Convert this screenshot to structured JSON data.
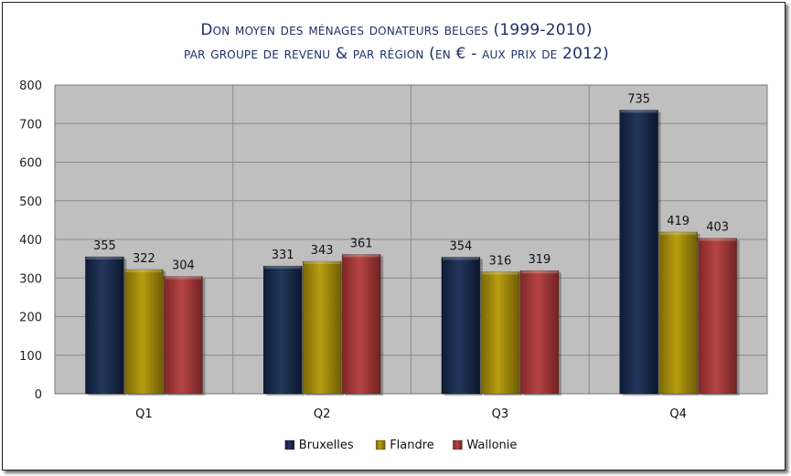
{
  "chart_data": {
    "type": "bar",
    "title": "Don moyen des ménages donateurs belges (1999-2010)",
    "subtitle": "par groupe de revenu & par région (en € - aux prix de 2012)",
    "categories": [
      "Q1",
      "Q2",
      "Q3",
      "Q4"
    ],
    "series": [
      {
        "name": "Bruxelles",
        "values": [
          355,
          331,
          354,
          735
        ],
        "color": "#17294a"
      },
      {
        "name": "Flandre",
        "values": [
          322,
          343,
          316,
          419
        ],
        "color": "#a08a0a"
      },
      {
        "name": "Wallonie",
        "values": [
          304,
          361,
          319,
          403
        ],
        "color": "#a33a3a"
      }
    ],
    "y_ticks": [
      "0",
      "100",
      "200",
      "300",
      "400",
      "500",
      "600",
      "700",
      "800"
    ],
    "ylim": [
      0,
      800
    ],
    "grid": true,
    "legend_position": "bottom-center",
    "plot_background": "#bfbfbf"
  }
}
